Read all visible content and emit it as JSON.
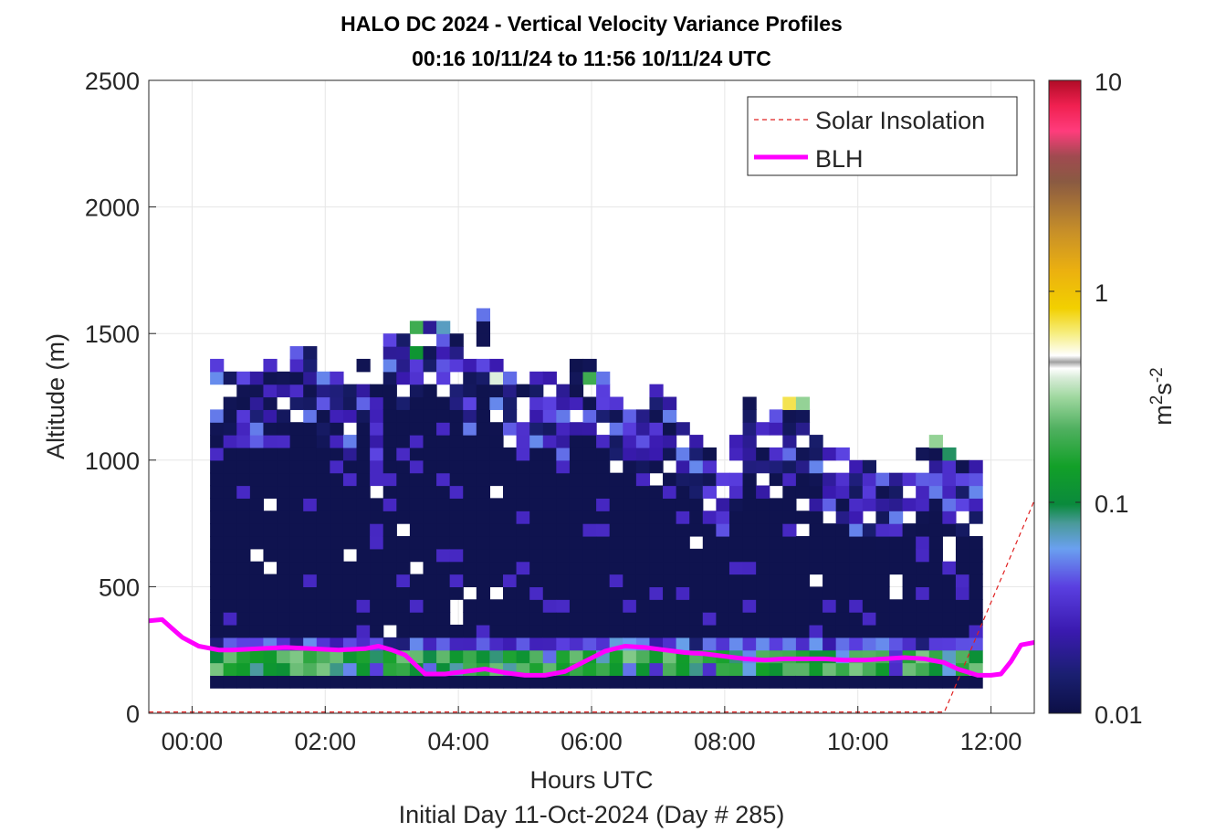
{
  "chart_data": {
    "type": "heatmap",
    "title": "HALO DC 2024 - Vertical Velocity Variance Profiles",
    "subtitle": "00:16 10/11/24 to 11:56 10/11/24  UTC",
    "xlabel": "Hours UTC",
    "xlabel2": "Initial Day 11-Oct-2024 (Day # 285)",
    "ylabel": "Altitude (m)",
    "x_ticks": [
      "00:00",
      "02:00",
      "04:00",
      "06:00",
      "08:00",
      "10:00",
      "12:00"
    ],
    "x_tick_values": [
      0,
      2,
      4,
      6,
      8,
      10,
      12
    ],
    "y_ticks": [
      "0",
      "500",
      "1000",
      "1500",
      "2000",
      "2500"
    ],
    "y_tick_values": [
      0,
      500,
      1000,
      1500,
      2000,
      2500
    ],
    "xlim": [
      -0.65,
      12.65
    ],
    "ylim": [
      0,
      2500
    ],
    "grid": true,
    "colorbar": {
      "label_base": "m",
      "label_sup1": "2",
      "label_mid": "s",
      "label_sup2": "-2",
      "scale": "log",
      "range": [
        0.01,
        10
      ],
      "ticks": [
        "0.01",
        "0.1",
        "1",
        "10"
      ],
      "tick_values": [
        0.01,
        0.1,
        1,
        10
      ]
    },
    "legend": {
      "position": "top-right",
      "entries": [
        {
          "label": "Solar Insolation",
          "style": "dashed",
          "color": "#e02020"
        },
        {
          "label": "BLH",
          "style": "solid",
          "color": "#ff00ff"
        }
      ]
    },
    "heatmap": {
      "time_start": 0.27,
      "time_step": 0.2,
      "alt_start": 100,
      "alt_step": 50,
      "background_level": 0.011,
      "profiles": [
        {
          "t": 0.37,
          "top": 1400
        },
        {
          "t": 0.57,
          "top": 1350
        },
        {
          "t": 0.77,
          "top": 1350
        },
        {
          "t": 0.97,
          "top": 1350
        },
        {
          "t": 1.17,
          "top": 1400
        },
        {
          "t": 1.37,
          "top": 1350
        },
        {
          "t": 1.57,
          "top": 1450
        },
        {
          "t": 1.77,
          "top": 1450
        },
        {
          "t": 1.97,
          "top": 1350
        },
        {
          "t": 2.17,
          "top": 1350
        },
        {
          "t": 2.37,
          "top": 1300
        },
        {
          "t": 2.57,
          "top": 1450
        },
        {
          "t": 2.77,
          "top": 1300
        },
        {
          "t": 2.97,
          "top": 1500
        },
        {
          "t": 3.17,
          "top": 1500
        },
        {
          "t": 3.37,
          "top": 1550
        },
        {
          "t": 3.57,
          "top": 1600
        },
        {
          "t": 3.77,
          "top": 1550
        },
        {
          "t": 3.97,
          "top": 1500
        },
        {
          "t": 4.17,
          "top": 1400
        },
        {
          "t": 4.37,
          "top": 1600
        },
        {
          "t": 4.57,
          "top": 1400
        },
        {
          "t": 4.77,
          "top": 1350
        },
        {
          "t": 4.97,
          "top": 1300
        },
        {
          "t": 5.17,
          "top": 1350
        },
        {
          "t": 5.37,
          "top": 1350
        },
        {
          "t": 5.57,
          "top": 1300
        },
        {
          "t": 5.77,
          "top": 1400
        },
        {
          "t": 5.97,
          "top": 1400
        },
        {
          "t": 6.17,
          "top": 1350
        },
        {
          "t": 6.37,
          "top": 1250
        },
        {
          "t": 6.57,
          "top": 1250
        },
        {
          "t": 6.77,
          "top": 1200
        },
        {
          "t": 6.97,
          "top": 1300
        },
        {
          "t": 7.17,
          "top": 1250
        },
        {
          "t": 7.37,
          "top": 1200
        },
        {
          "t": 7.57,
          "top": 1100
        },
        {
          "t": 7.77,
          "top": 1050
        },
        {
          "t": 7.97,
          "top": 1000
        },
        {
          "t": 8.17,
          "top": 1100
        },
        {
          "t": 8.37,
          "top": 1250
        },
        {
          "t": 8.57,
          "top": 1150
        },
        {
          "t": 8.77,
          "top": 1250
        },
        {
          "t": 8.97,
          "top": 1250
        },
        {
          "t": 9.17,
          "top": 1250
        },
        {
          "t": 9.37,
          "top": 1100
        },
        {
          "t": 9.57,
          "top": 1050
        },
        {
          "t": 9.77,
          "top": 1050
        },
        {
          "t": 9.97,
          "top": 1000
        },
        {
          "t": 10.17,
          "top": 1000
        },
        {
          "t": 10.37,
          "top": 950
        },
        {
          "t": 10.57,
          "top": 1000
        },
        {
          "t": 10.77,
          "top": 1000
        },
        {
          "t": 10.97,
          "top": 1050
        },
        {
          "t": 11.17,
          "top": 1100
        },
        {
          "t": 11.37,
          "top": 1050
        },
        {
          "t": 11.57,
          "top": 1000
        },
        {
          "t": 11.77,
          "top": 1000
        }
      ],
      "notable_cells": [
        {
          "t": 1.97,
          "alt": 1425,
          "value": 0.2
        },
        {
          "t": 2.17,
          "alt": 1425,
          "value": 0.6
        },
        {
          "t": 2.77,
          "alt": 1425,
          "value": 0.13
        },
        {
          "t": 3.37,
          "alt": 1525,
          "value": 0.2
        },
        {
          "t": 3.37,
          "alt": 1425,
          "value": 0.12
        },
        {
          "t": 3.57,
          "alt": 1525,
          "value": 0.02
        },
        {
          "t": 3.77,
          "alt": 1525,
          "value": 0.07
        },
        {
          "t": 4.37,
          "alt": 1575,
          "value": 0.05
        },
        {
          "t": 4.57,
          "alt": 1325,
          "value": 0.4
        },
        {
          "t": 5.97,
          "alt": 1325,
          "value": 0.2
        },
        {
          "t": 6.17,
          "alt": 1325,
          "value": 0.05
        },
        {
          "t": 7.77,
          "alt": 1125,
          "value": 0.6
        },
        {
          "t": 8.97,
          "alt": 1225,
          "value": 0.7
        },
        {
          "t": 9.17,
          "alt": 1225,
          "value": 0.3
        },
        {
          "t": 9.37,
          "alt": 1125,
          "value": 0.6
        },
        {
          "t": 11.17,
          "alt": 1075,
          "value": 0.3
        },
        {
          "t": 11.37,
          "alt": 1025,
          "value": 0.09
        }
      ]
    },
    "blh": {
      "t": [
        -0.65,
        -0.45,
        -0.3,
        -0.15,
        0.1,
        0.4,
        0.6,
        1.0,
        1.4,
        1.8,
        2.2,
        2.6,
        2.8,
        3.0,
        3.2,
        3.5,
        3.8,
        4.1,
        4.4,
        4.7,
        5.0,
        5.3,
        5.6,
        5.9,
        6.2,
        6.5,
        6.8,
        7.1,
        7.4,
        7.7,
        8.0,
        8.3,
        8.6,
        8.9,
        9.2,
        9.5,
        9.8,
        10.1,
        10.4,
        10.7,
        11.0,
        11.3,
        11.5,
        11.8,
        12.0,
        12.15,
        12.3,
        12.45,
        12.65
      ],
      "alt": [
        365,
        370,
        335,
        300,
        265,
        250,
        250,
        255,
        260,
        255,
        250,
        255,
        265,
        250,
        230,
        155,
        155,
        165,
        175,
        160,
        150,
        150,
        165,
        205,
        245,
        265,
        260,
        250,
        240,
        235,
        225,
        215,
        210,
        215,
        215,
        215,
        210,
        210,
        215,
        220,
        215,
        200,
        175,
        150,
        150,
        155,
        205,
        270,
        280
      ]
    },
    "solar_insolation": {
      "t": [
        -0.65,
        11.3,
        12.65
      ],
      "alt": [
        5,
        5,
        840
      ]
    }
  }
}
